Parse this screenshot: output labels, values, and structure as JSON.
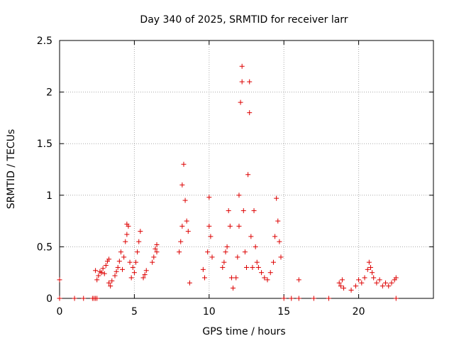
{
  "chart_data": {
    "type": "scatter",
    "title": "Day 340 of 2025, SRMTID for receiver larr",
    "xlabel": "GPS time / hours",
    "ylabel": "SRMTID / TECUs",
    "xlim": [
      0,
      25
    ],
    "ylim": [
      0,
      2.5
    ],
    "xticks": [
      0,
      5,
      10,
      15,
      20
    ],
    "yticks": [
      0,
      0.5,
      1,
      1.5,
      2,
      2.5
    ],
    "xtick_labels": [
      "0",
      "5",
      "10",
      "15",
      "20"
    ],
    "ytick_labels": [
      "0",
      "0.5",
      "1",
      "1.5",
      "2",
      "2.5"
    ],
    "grid": true,
    "marker": "plus",
    "color": "#dd0000",
    "series": [
      {
        "name": "SRMTID",
        "points": [
          [
            0.0,
            0.18
          ],
          [
            0.0,
            0.0
          ],
          [
            1.0,
            0.0
          ],
          [
            1.6,
            0.0
          ],
          [
            2.2,
            0.0
          ],
          [
            2.3,
            0.0
          ],
          [
            2.4,
            0.0
          ],
          [
            2.5,
            0.0
          ],
          [
            2.4,
            0.27
          ],
          [
            2.5,
            0.18
          ],
          [
            2.6,
            0.22
          ],
          [
            2.7,
            0.26
          ],
          [
            2.8,
            0.25
          ],
          [
            2.9,
            0.29
          ],
          [
            3.0,
            0.24
          ],
          [
            3.1,
            0.32
          ],
          [
            3.2,
            0.36
          ],
          [
            3.3,
            0.38
          ],
          [
            3.3,
            0.15
          ],
          [
            3.4,
            0.12
          ],
          [
            3.5,
            0.17
          ],
          [
            3.7,
            0.22
          ],
          [
            3.8,
            0.26
          ],
          [
            3.9,
            0.3
          ],
          [
            4.0,
            0.36
          ],
          [
            4.1,
            0.45
          ],
          [
            4.2,
            0.28
          ],
          [
            4.3,
            0.4
          ],
          [
            4.4,
            0.55
          ],
          [
            4.5,
            0.62
          ],
          [
            4.5,
            0.72
          ],
          [
            4.6,
            0.7
          ],
          [
            4.7,
            0.35
          ],
          [
            4.8,
            0.2
          ],
          [
            4.9,
            0.3
          ],
          [
            5.0,
            0.25
          ],
          [
            5.1,
            0.35
          ],
          [
            5.2,
            0.45
          ],
          [
            5.3,
            0.55
          ],
          [
            5.4,
            0.65
          ],
          [
            5.6,
            0.2
          ],
          [
            5.7,
            0.23
          ],
          [
            5.8,
            0.27
          ],
          [
            6.2,
            0.35
          ],
          [
            6.3,
            0.4
          ],
          [
            6.4,
            0.48
          ],
          [
            6.5,
            0.45
          ],
          [
            6.5,
            0.52
          ],
          [
            8.0,
            0.45
          ],
          [
            8.1,
            0.55
          ],
          [
            8.2,
            0.7
          ],
          [
            8.2,
            1.1
          ],
          [
            8.3,
            1.3
          ],
          [
            8.4,
            0.95
          ],
          [
            8.5,
            0.75
          ],
          [
            8.6,
            0.65
          ],
          [
            8.7,
            0.15
          ],
          [
            9.6,
            0.28
          ],
          [
            9.7,
            0.2
          ],
          [
            9.9,
            0.45
          ],
          [
            10.0,
            0.7
          ],
          [
            10.0,
            0.98
          ],
          [
            10.1,
            0.6
          ],
          [
            10.2,
            0.4
          ],
          [
            10.9,
            0.3
          ],
          [
            11.0,
            0.35
          ],
          [
            11.1,
            0.45
          ],
          [
            11.2,
            0.5
          ],
          [
            11.3,
            0.85
          ],
          [
            11.4,
            0.7
          ],
          [
            11.5,
            0.2
          ],
          [
            11.6,
            0.1
          ],
          [
            11.8,
            0.2
          ],
          [
            11.9,
            0.4
          ],
          [
            12.0,
            0.7
          ],
          [
            12.0,
            1.0
          ],
          [
            12.1,
            1.9
          ],
          [
            12.2,
            2.25
          ],
          [
            12.2,
            2.1
          ],
          [
            12.3,
            0.85
          ],
          [
            12.4,
            0.45
          ],
          [
            12.5,
            0.3
          ],
          [
            12.6,
            1.2
          ],
          [
            12.7,
            2.1
          ],
          [
            12.7,
            1.8
          ],
          [
            12.8,
            0.6
          ],
          [
            12.9,
            0.3
          ],
          [
            13.0,
            0.85
          ],
          [
            13.1,
            0.5
          ],
          [
            13.2,
            0.35
          ],
          [
            13.3,
            0.3
          ],
          [
            13.5,
            0.25
          ],
          [
            13.7,
            0.2
          ],
          [
            13.9,
            0.18
          ],
          [
            14.1,
            0.25
          ],
          [
            14.3,
            0.35
          ],
          [
            14.4,
            0.6
          ],
          [
            14.5,
            0.97
          ],
          [
            14.6,
            0.75
          ],
          [
            14.7,
            0.55
          ],
          [
            14.8,
            0.4
          ],
          [
            15.0,
            0.0
          ],
          [
            15.5,
            0.0
          ],
          [
            16.0,
            0.18
          ],
          [
            16.0,
            0.0
          ],
          [
            17.0,
            0.0
          ],
          [
            18.0,
            0.0
          ],
          [
            18.7,
            0.15
          ],
          [
            18.8,
            0.12
          ],
          [
            18.9,
            0.18
          ],
          [
            19.0,
            0.1
          ],
          [
            19.5,
            0.08
          ],
          [
            19.8,
            0.12
          ],
          [
            20.0,
            0.18
          ],
          [
            20.2,
            0.15
          ],
          [
            20.4,
            0.2
          ],
          [
            20.6,
            0.28
          ],
          [
            20.7,
            0.35
          ],
          [
            20.8,
            0.3
          ],
          [
            20.9,
            0.25
          ],
          [
            21.0,
            0.2
          ],
          [
            21.2,
            0.15
          ],
          [
            21.4,
            0.18
          ],
          [
            21.6,
            0.12
          ],
          [
            21.8,
            0.15
          ],
          [
            22.0,
            0.12
          ],
          [
            22.2,
            0.15
          ],
          [
            22.4,
            0.18
          ],
          [
            22.5,
            0.2
          ],
          [
            22.5,
            0.0
          ]
        ]
      }
    ]
  }
}
